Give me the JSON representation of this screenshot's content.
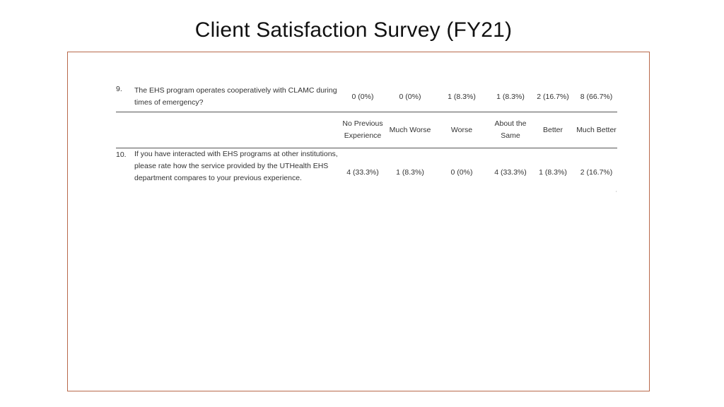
{
  "title": "Client Satisfaction Survey (FY21)",
  "q9": {
    "number": "9.",
    "text": "The EHS program operates cooperatively with CLAMC during times of emergency?",
    "values": [
      "0 (0%)",
      "0 (0%)",
      "1 (8.3%)",
      "1 (8.3%)",
      "2 (16.7%)",
      "8 (66.7%)"
    ]
  },
  "header": {
    "options": [
      "No Previous Experience",
      "Much Worse",
      "Worse",
      "About the Same",
      "Better",
      "Much Better"
    ]
  },
  "q10": {
    "number": "10.",
    "text": "If you have interacted with EHS programs at other institutions, please rate how the service provided by the UTHealth EHS department compares to your previous experience.",
    "values": [
      "4 (33.3%)",
      "1 (8.3%)",
      "0 (0%)",
      "4 (33.3%)",
      "1 (8.3%)",
      "2 (16.7%)"
    ]
  },
  "stray_mark": "‚"
}
